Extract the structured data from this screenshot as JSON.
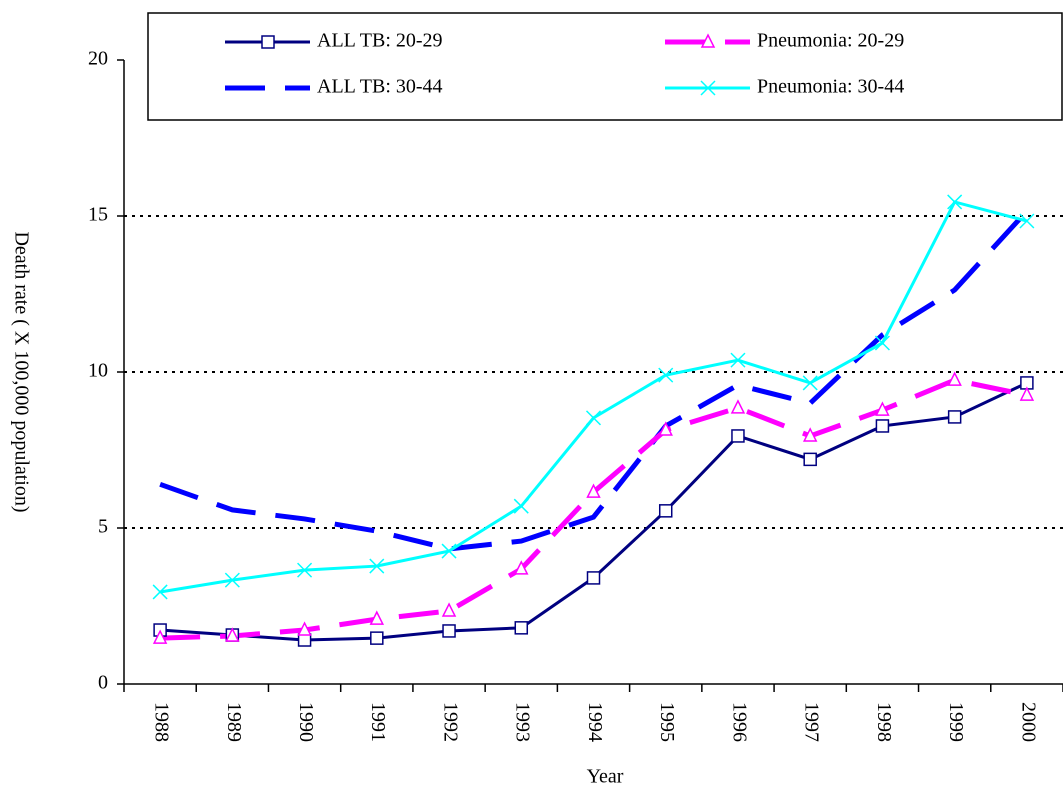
{
  "chart_data": {
    "type": "line",
    "x_label": "Year",
    "y_label": "Death rate ( X 100,000 population)",
    "categories": [
      "1988",
      "1989",
      "1990",
      "1991",
      "1992",
      "1993",
      "1994",
      "1995",
      "1996",
      "1997",
      "1998",
      "1999",
      "2000"
    ],
    "series": [
      {
        "name": "ALL TB: 20-29",
        "color": "#000080",
        "dash": false,
        "marker": "square",
        "values": [
          1.73,
          1.57,
          1.41,
          1.47,
          1.7,
          1.8,
          3.4,
          5.55,
          7.95,
          7.2,
          8.27,
          8.56,
          9.65
        ]
      },
      {
        "name": "ALL TB: 30-44",
        "color": "#0000ff",
        "dash": true,
        "marker": "none",
        "values": [
          6.4,
          5.58,
          5.29,
          4.9,
          4.33,
          4.58,
          5.35,
          8.27,
          9.58,
          9.0,
          11.19,
          12.63,
          15.16
        ]
      },
      {
        "name": "Pneumonia: 20-29",
        "color": "#ff00ff",
        "dash": true,
        "marker": "triangle",
        "values": [
          1.47,
          1.54,
          1.73,
          2.08,
          2.34,
          3.69,
          6.15,
          8.14,
          8.85,
          7.95,
          8.78,
          9.74,
          9.26
        ]
      },
      {
        "name": "Pneumonia: 30-44",
        "color": "#00ffff",
        "dash": false,
        "marker": "x",
        "values": [
          2.95,
          3.33,
          3.65,
          3.78,
          4.26,
          5.7,
          8.53,
          9.9,
          10.38,
          9.65,
          10.93,
          15.45,
          14.84
        ]
      }
    ],
    "ylim": [
      0,
      20
    ],
    "yticks": [
      0,
      5,
      10,
      15,
      20
    ],
    "grid": true,
    "legend": "top"
  }
}
